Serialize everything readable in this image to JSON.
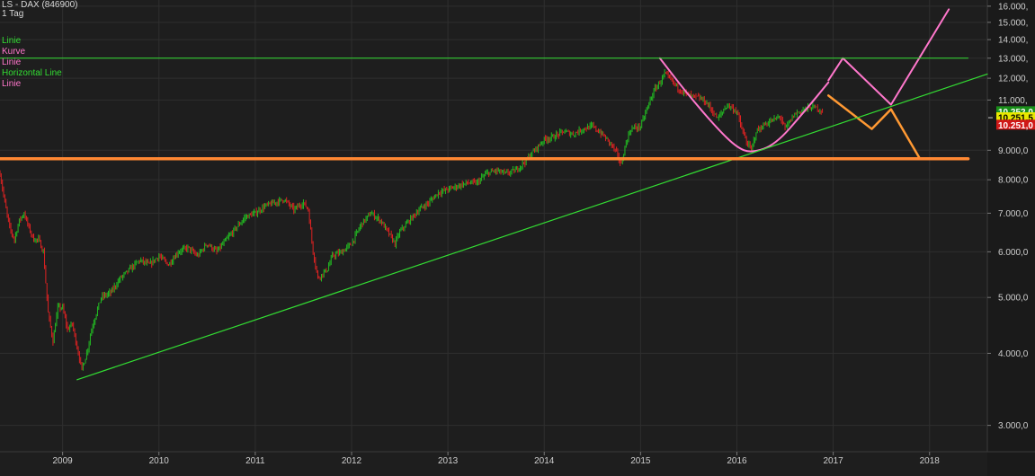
{
  "header": {
    "title": "LS - DAX (846900)",
    "interval": "1 Tag"
  },
  "legend": [
    {
      "label": "Linie",
      "color": "#33dd33"
    },
    {
      "label": "Kurve",
      "color": "#ff77cc"
    },
    {
      "label": "Linie",
      "color": "#ff77cc"
    },
    {
      "label": "Horizontal Line",
      "color": "#33dd33"
    },
    {
      "label": "Linie",
      "color": "#ff77cc"
    }
  ],
  "chart_data": {
    "type": "line",
    "yscale": "log",
    "ylim": [
      2700,
      16400
    ],
    "xlim": [
      2008.35,
      2018.6
    ],
    "y_ticks": [
      {
        "value": 3000,
        "label": "3.000,0"
      },
      {
        "value": 4000,
        "label": "4.000,0"
      },
      {
        "value": 5000,
        "label": "5.000,0"
      },
      {
        "value": 6000,
        "label": "6.000,0"
      },
      {
        "value": 7000,
        "label": "7.000,0"
      },
      {
        "value": 8000,
        "label": "8.000,0"
      },
      {
        "value": 9000,
        "label": "9.000,0"
      },
      {
        "value": 11000,
        "label": "11.000,"
      },
      {
        "value": 12000,
        "label": "12.000,"
      },
      {
        "value": 13000,
        "label": "13.000,"
      },
      {
        "value": 14000,
        "label": "14.000,"
      },
      {
        "value": 15000,
        "label": "15.000,"
      },
      {
        "value": 16000,
        "label": "16.000,"
      }
    ],
    "x_ticks": [
      {
        "value": 2009.0,
        "label": "2009"
      },
      {
        "value": 2010.0,
        "label": "2010"
      },
      {
        "value": 2011.0,
        "label": "2011"
      },
      {
        "value": 2012.0,
        "label": "2012"
      },
      {
        "value": 2013.0,
        "label": "2013"
      },
      {
        "value": 2014.0,
        "label": "2014"
      },
      {
        "value": 2015.0,
        "label": "2015"
      },
      {
        "value": 2016.0,
        "label": "2016"
      },
      {
        "value": 2017.0,
        "label": "2017"
      },
      {
        "value": 2018.0,
        "label": "2018"
      }
    ],
    "price_labels": [
      {
        "label": "10.252,0",
        "value": 10500,
        "bg": "#1a8f1a",
        "fg": "#ffffff"
      },
      {
        "label": "10.251,5",
        "value": 10250,
        "bg": "#e8e800",
        "fg": "#000000"
      },
      {
        "label": "10.251,0",
        "value": 9950,
        "bg": "#d01818",
        "fg": "#ffffff"
      }
    ],
    "series": [
      {
        "kind": "price",
        "up_color": "#22bb22",
        "down_color": "#dd2222",
        "x": [
          2008.35,
          2008.4,
          2008.45,
          2008.5,
          2008.55,
          2008.6,
          2008.65,
          2008.7,
          2008.75,
          2008.8,
          2008.85,
          2008.9,
          2008.95,
          2009.0,
          2009.05,
          2009.1,
          2009.15,
          2009.2,
          2009.25,
          2009.3,
          2009.35,
          2009.4,
          2009.5,
          2009.6,
          2009.7,
          2009.8,
          2009.9,
          2010.0,
          2010.1,
          2010.2,
          2010.3,
          2010.4,
          2010.5,
          2010.6,
          2010.7,
          2010.8,
          2010.9,
          2011.0,
          2011.1,
          2011.2,
          2011.3,
          2011.4,
          2011.5,
          2011.55,
          2011.6,
          2011.65,
          2011.7,
          2011.75,
          2011.8,
          2011.9,
          2012.0,
          2012.1,
          2012.2,
          2012.3,
          2012.4,
          2012.45,
          2012.5,
          2012.6,
          2012.7,
          2012.8,
          2012.9,
          2013.0,
          2013.1,
          2013.2,
          2013.3,
          2013.4,
          2013.5,
          2013.6,
          2013.7,
          2013.8,
          2013.9,
          2014.0,
          2014.1,
          2014.2,
          2014.3,
          2014.4,
          2014.5,
          2014.6,
          2014.7,
          2014.75,
          2014.8,
          2014.85,
          2014.9,
          2015.0,
          2015.1,
          2015.15,
          2015.2,
          2015.25,
          2015.3,
          2015.4,
          2015.5,
          2015.6,
          2015.65,
          2015.7,
          2015.8,
          2015.9,
          2016.0,
          2016.05,
          2016.1,
          2016.15,
          2016.2,
          2016.3,
          2016.4,
          2016.45,
          2016.5,
          2016.6,
          2016.7,
          2016.8,
          2016.9
        ],
        "y": [
          8200,
          7300,
          6600,
          6300,
          6800,
          7000,
          6600,
          6300,
          6300,
          6000,
          4700,
          4200,
          4800,
          4800,
          4400,
          4500,
          4100,
          3750,
          4000,
          4400,
          4700,
          5000,
          5100,
          5400,
          5600,
          5800,
          5700,
          5900,
          5700,
          6000,
          6100,
          5900,
          6200,
          6000,
          6300,
          6600,
          6900,
          7000,
          7200,
          7300,
          7400,
          7100,
          7300,
          7100,
          6000,
          5400,
          5500,
          5600,
          5900,
          6000,
          6200,
          6700,
          7000,
          6800,
          6400,
          6200,
          6500,
          6800,
          7100,
          7300,
          7600,
          7700,
          7800,
          7900,
          7900,
          8200,
          8300,
          8200,
          8300,
          8600,
          9000,
          9400,
          9500,
          9700,
          9600,
          9800,
          9900,
          9600,
          9200,
          8900,
          8500,
          9300,
          9800,
          9900,
          11000,
          11500,
          11800,
          12200,
          12000,
          11500,
          11200,
          11100,
          11000,
          10800,
          10200,
          10800,
          10500,
          9800,
          9300,
          9000,
          9700,
          10000,
          10200,
          10300,
          9800,
          10400,
          10600,
          10700,
          10500
        ]
      },
      {
        "kind": "projection",
        "label": "Linie",
        "color": "#ff77cc",
        "width": 2,
        "x": [
          2016.95,
          2017.1,
          2017.6,
          2018.2
        ],
        "y": [
          11900,
          13000,
          10800,
          15800
        ]
      },
      {
        "kind": "projection",
        "label": "Linie",
        "color": "#ff9933",
        "width": 2.5,
        "x": [
          2016.95,
          2017.4,
          2017.6,
          2017.9
        ],
        "y": [
          11200,
          9800,
          10600,
          8700
        ]
      },
      {
        "kind": "curve",
        "label": "Kurve",
        "color": "#ff77cc",
        "width": 2,
        "x": [
          2015.2,
          2015.5,
          2015.8,
          2016.0,
          2016.15,
          2016.4,
          2016.7,
          2016.95
        ],
        "y": [
          13000,
          11200,
          9800,
          9100,
          8900,
          9200,
          10500,
          11800
        ]
      },
      {
        "kind": "trendline",
        "label": "Linie",
        "color": "#33dd33",
        "width": 1.2,
        "x": [
          2009.15,
          2018.6
        ],
        "y": [
          3600,
          12200
        ]
      },
      {
        "kind": "hline",
        "label": "Horizontal Line",
        "color": "#33dd33",
        "width": 1,
        "x": [
          2008.35,
          2018.4
        ],
        "y": [
          13000,
          13000
        ]
      },
      {
        "kind": "hline",
        "label": "Horizontal Line",
        "color": "#ff8833",
        "width": 3.5,
        "x": [
          2008.35,
          2018.4
        ],
        "y": [
          8700,
          8700
        ]
      }
    ]
  }
}
